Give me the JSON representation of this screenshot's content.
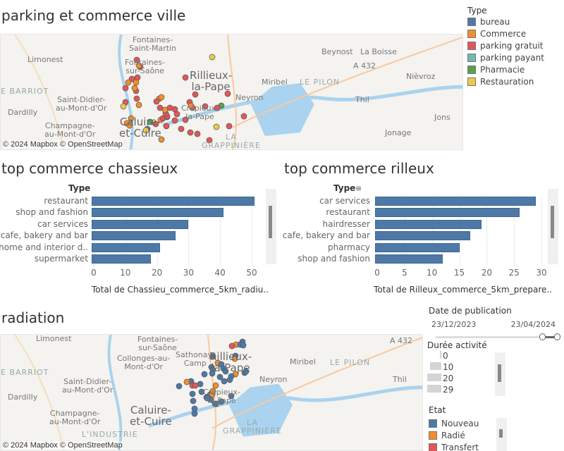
{
  "map1": {
    "title": "parking et commerce ville",
    "credit": "© 2024 Mapbox © OpenStreetMap",
    "places": [
      "Fontaines-\nSaint-Martin",
      "Limonest",
      "Fontaines-\nsur-Saône",
      "Rillieux-\nla-Pape",
      "Beynost",
      "La Boisse",
      "A 432",
      "Nièvroz",
      "Miribel",
      "LE PILON",
      "E BARRIOT",
      "Saint-Didier-\nau-Mont-d'Or",
      "Neyron",
      "Dardilly",
      "Thil",
      "Crépieux-\nla-Pape",
      "Jons",
      "Caluire-\net-Cuire",
      "Champagne-\nau-Mont-d'Or",
      "Jonage",
      "LA\nGRAPPINIÈRE"
    ]
  },
  "legend": {
    "title": "Type",
    "items": [
      {
        "label": "bureau",
        "color": "#4e79a7"
      },
      {
        "label": "Commerce",
        "color": "#f28e2b"
      },
      {
        "label": "parking gratuit",
        "color": "#e15759"
      },
      {
        "label": "parking payant",
        "color": "#76b7b2"
      },
      {
        "label": "Pharmacie",
        "color": "#59a14f"
      },
      {
        "label": "Restauration",
        "color": "#edc948"
      }
    ]
  },
  "chart_data": [
    {
      "type": "bar",
      "title": "top commerce chassieux",
      "ylabel": "Type",
      "xlabel": "Total de Chassieu_commerce_5km_radiu..",
      "categories": [
        "restaurant",
        "shop and fashion",
        "car services",
        "cafe, bakery and bar",
        "home and  interior d..",
        "supermarket"
      ],
      "values": [
        51,
        41,
        30,
        26,
        21,
        18
      ],
      "xticks": [
        0,
        10,
        20,
        30,
        40,
        50
      ],
      "xlim": [
        0,
        54
      ]
    },
    {
      "type": "bar",
      "title": "top commerce rilleux",
      "ylabel": "Type",
      "xlabel": "Total de Rilleux_commerce_5km_prepare..",
      "categories": [
        "car services",
        "restaurant",
        "hairdresser",
        "cafe, bakery and bar",
        "pharmacy",
        "shop and fashion"
      ],
      "values": [
        29,
        26,
        19,
        17,
        15,
        12
      ],
      "xticks": [
        0,
        5,
        10,
        15,
        20,
        25,
        30
      ],
      "xlim": [
        0,
        31.5
      ]
    }
  ],
  "map2": {
    "title": "radiation",
    "credit": "© 2024 Mapbox © OpenStreetMap",
    "places": [
      "Limonest",
      "Fontaines-\nsur-Saône",
      "Sathonay-\nCamp",
      "Collonges-au-\nMont-d'Or",
      "Rillieux-\nla-Pape",
      "A 432",
      "Miribel",
      "LE PILON",
      "E BARRIOT",
      "Saint-Didier-\nau-Mont-d'Or",
      "Neyron",
      "Thil",
      "Dardilly",
      "Crépieux-\nla-Pape",
      "Caluire-\net-Cuire",
      "Champagne-\nau-Mont-d'Or",
      "LA\nGRAPPINIÈRE",
      "L'INDUSTRIE"
    ]
  },
  "filters": {
    "date": {
      "title": "Date de publication",
      "start": "23/12/2023",
      "end": "23/04/2024"
    },
    "duree": {
      "title": "Durée activité",
      "items": [
        "0",
        "10",
        "20",
        "29"
      ]
    },
    "etat": {
      "title": "Etat",
      "items": [
        {
          "label": "Nouveau",
          "color": "#4e79a7"
        },
        {
          "label": "Radié",
          "color": "#f28e2b"
        },
        {
          "label": "Transfert",
          "color": "#e15759"
        }
      ]
    }
  }
}
